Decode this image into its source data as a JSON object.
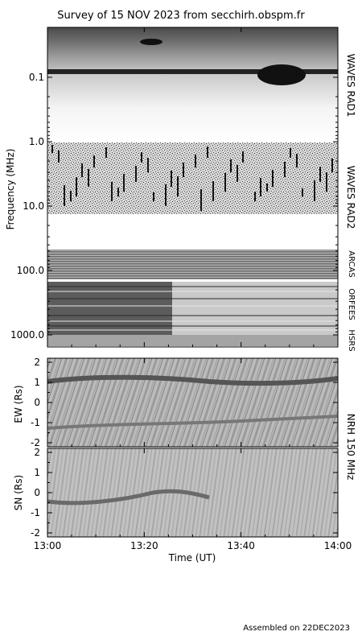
{
  "title": "Survey of 15 NOV 2023 from secchirh.obspm.fr",
  "footer": "Assembled on 22DEC2023",
  "chart_data": [
    {
      "type": "heatmap",
      "name": "dynamic-spectrum",
      "ylabel": "Frequency (MHz)",
      "y_scale": "log",
      "y_reversed": true,
      "y_ticks": [
        "0.1",
        "1.0",
        "10.0",
        "100.0",
        "1000.0"
      ],
      "y_tick_values": [
        0.1,
        1.0,
        10.0,
        100.0,
        1000.0
      ],
      "bands": [
        {
          "label": "WAVES RAD1",
          "freq_range_mhz": [
            0.02,
            1.0
          ]
        },
        {
          "label": "WAVES RAD2",
          "freq_range_mhz": [
            1.0,
            13.8
          ]
        },
        {
          "label": "ARCAS",
          "freq_range_mhz": [
            40,
            120
          ]
        },
        {
          "label": "ORFEES",
          "freq_range_mhz": [
            140,
            1000
          ]
        },
        {
          "label": "HSRS",
          "freq_range_mhz": [
            1000,
            1400
          ]
        }
      ],
      "x_range_ut": [
        "13:00",
        "14:00"
      ],
      "colormap": "grayscale"
    },
    {
      "type": "heatmap",
      "name": "nrh-ew",
      "ylabel": "EW (Rs)",
      "ylim": [
        -2.2,
        2.2
      ],
      "y_ticks": [
        "2",
        "1",
        "0",
        "-1",
        "-2"
      ],
      "y_tick_values": [
        2,
        1,
        0,
        -1,
        -2
      ],
      "x_range_ut": [
        "13:00",
        "14:00"
      ],
      "colormap": "grayscale"
    },
    {
      "type": "heatmap",
      "name": "nrh-sn",
      "ylabel": "SN (Rs)",
      "ylim": [
        -2.2,
        2.2
      ],
      "y_ticks": [
        "2",
        "1",
        "0",
        "-1",
        "-2"
      ],
      "y_tick_values": [
        2,
        1,
        0,
        -1,
        -2
      ],
      "x_range_ut": [
        "13:00",
        "14:00"
      ],
      "xlabel": "Time (UT)",
      "x_ticks": [
        "13:00",
        "13:20",
        "13:40",
        "14:00"
      ],
      "colormap": "grayscale"
    }
  ],
  "right_labels": {
    "rad1": "WAVES RAD1",
    "rad2": "WAVES RAD2",
    "arcas": "ARCAS",
    "orfees": "ORFEES",
    "hsrs": "HSRS",
    "nrh": "NRH 150 MHz"
  }
}
